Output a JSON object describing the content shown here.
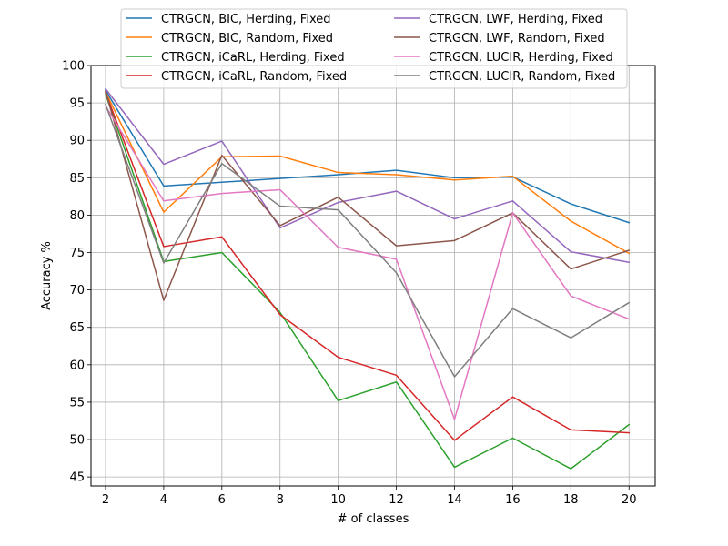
{
  "chart_data": {
    "type": "line",
    "xlabel": "# of classes",
    "ylabel": "Accuracy %",
    "x": [
      2,
      4,
      6,
      8,
      10,
      12,
      14,
      16,
      18,
      20
    ],
    "xticks": [
      "2",
      "4",
      "6",
      "8",
      "10",
      "12",
      "14",
      "16",
      "18",
      "20"
    ],
    "yticks": [
      "45",
      "50",
      "55",
      "60",
      "65",
      "70",
      "75",
      "80",
      "85",
      "90",
      "95",
      "100"
    ],
    "xlim": [
      1.5,
      20.9
    ],
    "ylim": [
      43.8,
      100
    ],
    "grid": true,
    "legend_position": "top-center, outside plot, 2 columns",
    "series": [
      {
        "name": "CTRGCN, BIC, Herding, Fixed",
        "color": "#1f77b4",
        "values": [
          96.7,
          83.9,
          84.4,
          84.9,
          85.4,
          86.0,
          85.0,
          85.1,
          81.5,
          79.0
        ]
      },
      {
        "name": "CTRGCN, BIC, Random, Fixed",
        "color": "#ff7f0e",
        "values": [
          96.5,
          80.4,
          87.8,
          87.9,
          85.7,
          85.4,
          84.7,
          85.2,
          79.2,
          74.9
        ]
      },
      {
        "name": "CTRGCN, iCaRL, Herding, Fixed",
        "color": "#2ca02c",
        "values": [
          96.2,
          73.8,
          75.0,
          67.0,
          55.2,
          57.7,
          46.3,
          50.2,
          46.1,
          52.0
        ]
      },
      {
        "name": "CTRGCN, iCaRL, Random, Fixed",
        "color": "#d62728",
        "values": [
          96.4,
          75.8,
          77.1,
          66.7,
          61.0,
          58.6,
          49.9,
          55.7,
          51.3,
          50.9
        ]
      },
      {
        "name": "CTRGCN, LWF, Herding, Fixed",
        "color": "#9467bd",
        "values": [
          96.9,
          86.8,
          89.9,
          78.3,
          81.7,
          83.2,
          79.5,
          81.9,
          75.1,
          73.7
        ]
      },
      {
        "name": "CTRGCN, LWF, Random, Fixed",
        "color": "#8c564b",
        "values": [
          96.6,
          68.6,
          88.0,
          78.6,
          82.4,
          75.9,
          76.6,
          80.3,
          72.8,
          75.3
        ]
      },
      {
        "name": "CTRGCN, LUCIR, Herding, Fixed",
        "color": "#e377c2",
        "values": [
          94.6,
          81.9,
          82.9,
          83.4,
          75.7,
          74.1,
          52.7,
          80.3,
          69.2,
          66.1
        ]
      },
      {
        "name": "CTRGCN, LUCIR, Random, Fixed",
        "color": "#7f7f7f",
        "values": [
          94.8,
          73.6,
          86.9,
          81.2,
          80.7,
          72.3,
          58.4,
          67.5,
          63.6,
          68.3
        ]
      }
    ]
  }
}
